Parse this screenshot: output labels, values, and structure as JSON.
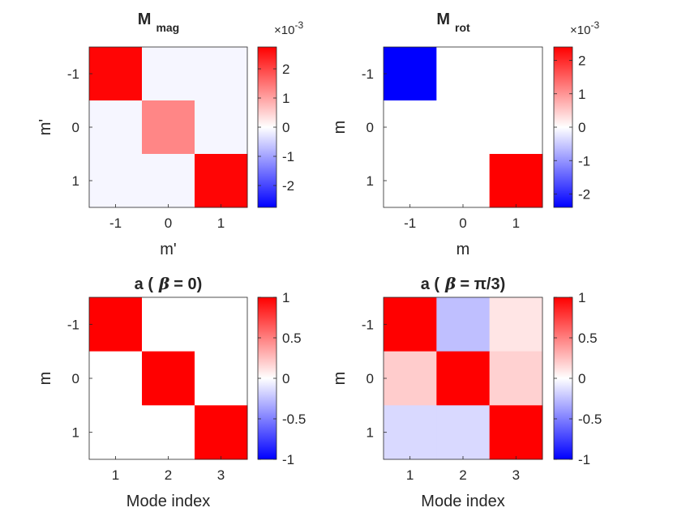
{
  "chart_data": [
    {
      "type": "heatmap",
      "name": "M-mag",
      "title": {
        "main": "M",
        "sub": "mag"
      },
      "xlabel": "m'",
      "ylabel": "m'",
      "x_ticks": [
        "-1",
        "0",
        "1"
      ],
      "y_ticks": [
        "-1",
        "0",
        "1"
      ],
      "matrix": [
        [
          2.7,
          -0.1,
          -0.1
        ],
        [
          -0.1,
          1.3,
          -0.1
        ],
        [
          -0.1,
          -0.1,
          2.7
        ]
      ],
      "clim": [
        -2.75,
        2.75
      ],
      "colorbar": {
        "ticks": [
          "2",
          "1",
          "0",
          "-1",
          "-2"
        ],
        "tick_values": [
          2,
          1,
          0,
          -1,
          -2
        ],
        "exponent": "-3",
        "multiplier": "×10"
      }
    },
    {
      "type": "heatmap",
      "name": "M-rot",
      "title": {
        "main": "M",
        "sub": "rot"
      },
      "xlabel": "m",
      "ylabel": "m",
      "x_ticks": [
        "-1",
        "0",
        "1"
      ],
      "y_ticks": [
        "-1",
        "0",
        "1"
      ],
      "matrix": [
        [
          -2.4,
          0,
          0
        ],
        [
          0,
          0,
          0
        ],
        [
          0,
          0,
          2.4
        ]
      ],
      "clim": [
        -2.4,
        2.4
      ],
      "colorbar": {
        "ticks": [
          "2",
          "1",
          "0",
          "-1",
          "-2"
        ],
        "tick_values": [
          2,
          1,
          0,
          -1,
          -2
        ],
        "exponent": "-3",
        "multiplier": "×10"
      }
    },
    {
      "type": "heatmap",
      "name": "a-beta-0",
      "title": {
        "prefix": "a (",
        "symbol": "β",
        "suffix": "= 0)"
      },
      "xlabel": "Mode index",
      "ylabel": "m",
      "x_ticks": [
        "1",
        "2",
        "3"
      ],
      "y_ticks": [
        "-1",
        "0",
        "1"
      ],
      "matrix": [
        [
          1,
          0,
          0
        ],
        [
          0,
          1,
          0
        ],
        [
          0,
          0,
          1
        ]
      ],
      "clim": [
        -1,
        1
      ],
      "colorbar": {
        "ticks": [
          "1",
          "0.5",
          "0",
          "-0.5",
          "-1"
        ],
        "tick_values": [
          1,
          0.5,
          0,
          -0.5,
          -1
        ]
      }
    },
    {
      "type": "heatmap",
      "name": "a-beta-pi3",
      "title": {
        "prefix": "a (",
        "symbol": "β",
        "suffix": "=  π/3)"
      },
      "xlabel": "Mode index",
      "ylabel": "m",
      "x_ticks": [
        "1",
        "2",
        "3"
      ],
      "y_ticks": [
        "-1",
        "0",
        "1"
      ],
      "matrix": [
        [
          1,
          -0.25,
          0.1
        ],
        [
          0.2,
          1,
          0.18
        ],
        [
          -0.15,
          -0.15,
          1
        ]
      ],
      "clim": [
        -1,
        1
      ],
      "colorbar": {
        "ticks": [
          "1",
          "0.5",
          "0",
          "-0.5",
          "-1"
        ],
        "tick_values": [
          1,
          0.5,
          0,
          -0.5,
          -1
        ]
      }
    }
  ],
  "colors": {
    "negative": "#0000ff",
    "neutral": "#ffffff",
    "positive": "#ff0000",
    "axis": "#262626"
  }
}
